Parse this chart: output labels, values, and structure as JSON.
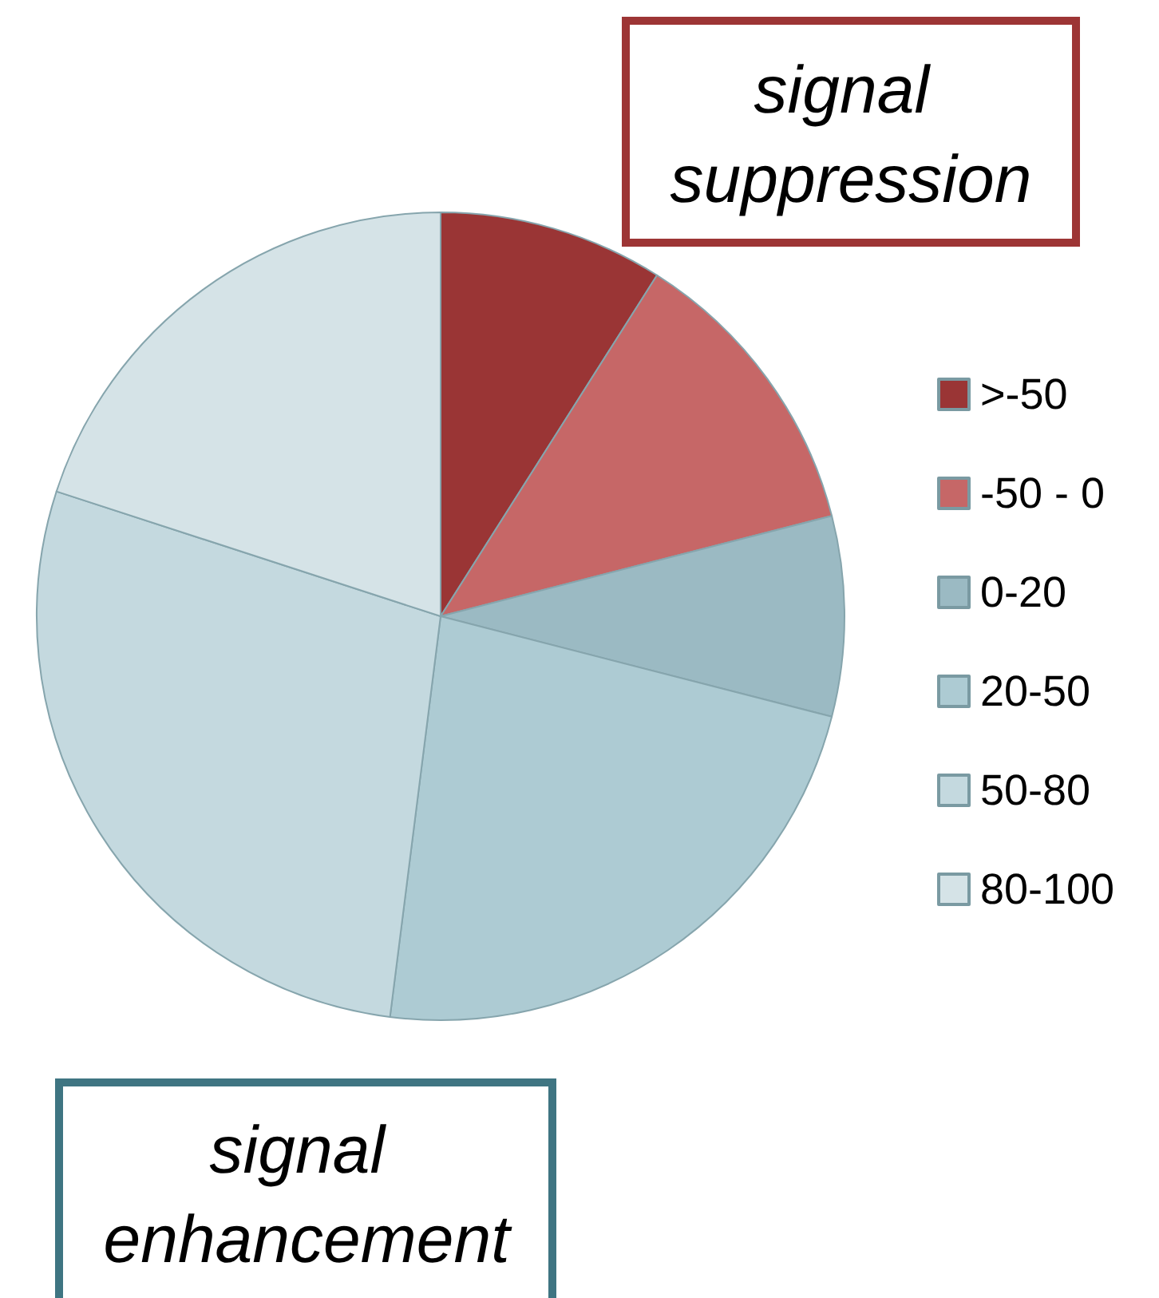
{
  "chart_data": {
    "type": "pie",
    "categories": [
      ">-50",
      "-50 - 0",
      "0-20",
      "20-50",
      "50-80",
      "80-100"
    ],
    "values": [
      9,
      12,
      8,
      23,
      28,
      20
    ],
    "colors": [
      "#9a3535",
      "#c66767",
      "#9bbac3",
      "#adcbd3",
      "#c4d9df",
      "#d5e3e7"
    ],
    "legend": "right",
    "annotations": [
      "signal suppression",
      "signal enhancement"
    ]
  }
}
